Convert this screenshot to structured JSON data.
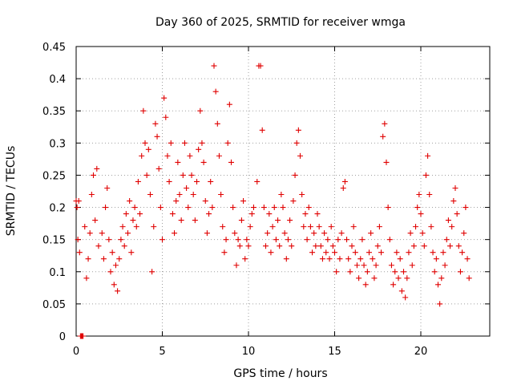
{
  "chart_data": {
    "type": "scatter",
    "title": "Day 360 of 2025, SRMTID for receiver wmga",
    "xlabel": "GPS time / hours",
    "ylabel": "SRMTID / TECUs",
    "xlim": [
      0,
      24.0
    ],
    "ylim": [
      0,
      0.45
    ],
    "xticks": [
      0,
      5,
      10,
      15,
      20
    ],
    "xtick_labels": [
      "0",
      "5",
      "10",
      "15",
      "20"
    ],
    "yticks": [
      0,
      0.05,
      0.1,
      0.15,
      0.2,
      0.25,
      0.3,
      0.35,
      0.4,
      0.45
    ],
    "ytick_labels": [
      "0",
      "0.05",
      "0.1",
      "0.15",
      "0.2",
      "0.25",
      "0.3",
      "0.35",
      "0.4",
      "0.45"
    ],
    "grid": true,
    "marker": "+",
    "color": "#e00000",
    "series": [
      {
        "name": "SRMTID",
        "points": [
          [
            0.0,
            0.21
          ],
          [
            0.05,
            0.2
          ],
          [
            0.1,
            0.15
          ],
          [
            0.15,
            0.21
          ],
          [
            0.2,
            0.13
          ],
          [
            0.25,
            0.0
          ],
          [
            0.3,
            0.0
          ],
          [
            0.35,
            0.0
          ],
          [
            0.4,
            0.0
          ],
          [
            0.5,
            0.17
          ],
          [
            0.6,
            0.09
          ],
          [
            0.7,
            0.12
          ],
          [
            0.8,
            0.16
          ],
          [
            0.9,
            0.22
          ],
          [
            1.0,
            0.25
          ],
          [
            1.1,
            0.18
          ],
          [
            1.2,
            0.26
          ],
          [
            1.3,
            0.14
          ],
          [
            1.5,
            0.16
          ],
          [
            1.6,
            0.12
          ],
          [
            1.7,
            0.2
          ],
          [
            1.8,
            0.23
          ],
          [
            1.9,
            0.15
          ],
          [
            2.0,
            0.1
          ],
          [
            2.1,
            0.13
          ],
          [
            2.2,
            0.08
          ],
          [
            2.3,
            0.11
          ],
          [
            2.4,
            0.07
          ],
          [
            2.5,
            0.12
          ],
          [
            2.6,
            0.15
          ],
          [
            2.7,
            0.17
          ],
          [
            2.8,
            0.14
          ],
          [
            2.9,
            0.19
          ],
          [
            3.0,
            0.16
          ],
          [
            3.1,
            0.21
          ],
          [
            3.2,
            0.13
          ],
          [
            3.3,
            0.18
          ],
          [
            3.4,
            0.2
          ],
          [
            3.5,
            0.17
          ],
          [
            3.6,
            0.24
          ],
          [
            3.7,
            0.19
          ],
          [
            3.8,
            0.28
          ],
          [
            3.9,
            0.35
          ],
          [
            4.0,
            0.3
          ],
          [
            4.1,
            0.25
          ],
          [
            4.2,
            0.29
          ],
          [
            4.3,
            0.22
          ],
          [
            4.4,
            0.1
          ],
          [
            4.5,
            0.17
          ],
          [
            4.6,
            0.33
          ],
          [
            4.7,
            0.31
          ],
          [
            4.8,
            0.26
          ],
          [
            4.9,
            0.2
          ],
          [
            5.0,
            0.15
          ],
          [
            5.1,
            0.37
          ],
          [
            5.2,
            0.34
          ],
          [
            5.3,
            0.28
          ],
          [
            5.4,
            0.24
          ],
          [
            5.5,
            0.3
          ],
          [
            5.6,
            0.19
          ],
          [
            5.7,
            0.16
          ],
          [
            5.8,
            0.21
          ],
          [
            5.9,
            0.27
          ],
          [
            6.0,
            0.22
          ],
          [
            6.1,
            0.18
          ],
          [
            6.2,
            0.25
          ],
          [
            6.3,
            0.3
          ],
          [
            6.4,
            0.23
          ],
          [
            6.5,
            0.2
          ],
          [
            6.6,
            0.28
          ],
          [
            6.7,
            0.25
          ],
          [
            6.8,
            0.22
          ],
          [
            6.9,
            0.18
          ],
          [
            7.0,
            0.24
          ],
          [
            7.1,
            0.29
          ],
          [
            7.2,
            0.35
          ],
          [
            7.3,
            0.3
          ],
          [
            7.4,
            0.27
          ],
          [
            7.5,
            0.21
          ],
          [
            7.6,
            0.16
          ],
          [
            7.7,
            0.19
          ],
          [
            7.8,
            0.24
          ],
          [
            7.9,
            0.2
          ],
          [
            8.0,
            0.42
          ],
          [
            8.1,
            0.38
          ],
          [
            8.2,
            0.33
          ],
          [
            8.3,
            0.28
          ],
          [
            8.4,
            0.22
          ],
          [
            8.5,
            0.17
          ],
          [
            8.6,
            0.13
          ],
          [
            8.7,
            0.15
          ],
          [
            8.8,
            0.3
          ],
          [
            8.9,
            0.36
          ],
          [
            9.0,
            0.27
          ],
          [
            9.1,
            0.2
          ],
          [
            9.2,
            0.16
          ],
          [
            9.3,
            0.11
          ],
          [
            9.4,
            0.15
          ],
          [
            9.5,
            0.14
          ],
          [
            9.6,
            0.18
          ],
          [
            9.7,
            0.21
          ],
          [
            9.8,
            0.12
          ],
          [
            9.9,
            0.15
          ],
          [
            10.0,
            0.14
          ],
          [
            10.1,
            0.17
          ],
          [
            10.2,
            0.19
          ],
          [
            10.3,
            0.2
          ],
          [
            10.5,
            0.24
          ],
          [
            10.6,
            0.42
          ],
          [
            10.7,
            0.42
          ],
          [
            10.8,
            0.32
          ],
          [
            10.9,
            0.2
          ],
          [
            11.0,
            0.14
          ],
          [
            11.1,
            0.16
          ],
          [
            11.2,
            0.19
          ],
          [
            11.3,
            0.13
          ],
          [
            11.4,
            0.17
          ],
          [
            11.5,
            0.2
          ],
          [
            11.6,
            0.15
          ],
          [
            11.7,
            0.18
          ],
          [
            11.8,
            0.14
          ],
          [
            11.9,
            0.22
          ],
          [
            12.0,
            0.2
          ],
          [
            12.1,
            0.16
          ],
          [
            12.2,
            0.12
          ],
          [
            12.3,
            0.15
          ],
          [
            12.4,
            0.18
          ],
          [
            12.5,
            0.14
          ],
          [
            12.6,
            0.21
          ],
          [
            12.7,
            0.25
          ],
          [
            12.8,
            0.3
          ],
          [
            12.9,
            0.32
          ],
          [
            13.0,
            0.28
          ],
          [
            13.1,
            0.22
          ],
          [
            13.2,
            0.17
          ],
          [
            13.3,
            0.19
          ],
          [
            13.4,
            0.15
          ],
          [
            13.5,
            0.2
          ],
          [
            13.6,
            0.17
          ],
          [
            13.7,
            0.13
          ],
          [
            13.8,
            0.16
          ],
          [
            13.9,
            0.14
          ],
          [
            14.0,
            0.19
          ],
          [
            14.1,
            0.17
          ],
          [
            14.2,
            0.14
          ],
          [
            14.3,
            0.12
          ],
          [
            14.4,
            0.16
          ],
          [
            14.5,
            0.13
          ],
          [
            14.6,
            0.15
          ],
          [
            14.7,
            0.12
          ],
          [
            14.8,
            0.17
          ],
          [
            14.9,
            0.14
          ],
          [
            15.0,
            0.13
          ],
          [
            15.1,
            0.1
          ],
          [
            15.2,
            0.15
          ],
          [
            15.3,
            0.12
          ],
          [
            15.4,
            0.16
          ],
          [
            15.5,
            0.23
          ],
          [
            15.6,
            0.24
          ],
          [
            15.7,
            0.15
          ],
          [
            15.8,
            0.12
          ],
          [
            15.9,
            0.1
          ],
          [
            16.0,
            0.14
          ],
          [
            16.1,
            0.17
          ],
          [
            16.2,
            0.13
          ],
          [
            16.3,
            0.11
          ],
          [
            16.4,
            0.09
          ],
          [
            16.5,
            0.12
          ],
          [
            16.6,
            0.15
          ],
          [
            16.7,
            0.11
          ],
          [
            16.8,
            0.08
          ],
          [
            16.9,
            0.1
          ],
          [
            17.0,
            0.13
          ],
          [
            17.1,
            0.16
          ],
          [
            17.2,
            0.12
          ],
          [
            17.3,
            0.09
          ],
          [
            17.4,
            0.11
          ],
          [
            17.5,
            0.14
          ],
          [
            17.6,
            0.17
          ],
          [
            17.7,
            0.13
          ],
          [
            17.8,
            0.31
          ],
          [
            17.9,
            0.33
          ],
          [
            18.0,
            0.27
          ],
          [
            18.1,
            0.2
          ],
          [
            18.2,
            0.15
          ],
          [
            18.3,
            0.11
          ],
          [
            18.4,
            0.08
          ],
          [
            18.5,
            0.1
          ],
          [
            18.6,
            0.13
          ],
          [
            18.7,
            0.09
          ],
          [
            18.8,
            0.12
          ],
          [
            18.9,
            0.07
          ],
          [
            19.0,
            0.1
          ],
          [
            19.1,
            0.06
          ],
          [
            19.2,
            0.09
          ],
          [
            19.3,
            0.13
          ],
          [
            19.4,
            0.16
          ],
          [
            19.5,
            0.11
          ],
          [
            19.6,
            0.14
          ],
          [
            19.7,
            0.17
          ],
          [
            19.8,
            0.2
          ],
          [
            19.9,
            0.22
          ],
          [
            20.0,
            0.19
          ],
          [
            20.1,
            0.16
          ],
          [
            20.2,
            0.14
          ],
          [
            20.3,
            0.25
          ],
          [
            20.4,
            0.28
          ],
          [
            20.5,
            0.22
          ],
          [
            20.6,
            0.17
          ],
          [
            20.7,
            0.13
          ],
          [
            20.8,
            0.1
          ],
          [
            20.9,
            0.12
          ],
          [
            21.0,
            0.08
          ],
          [
            21.1,
            0.05
          ],
          [
            21.2,
            0.09
          ],
          [
            21.3,
            0.13
          ],
          [
            21.4,
            0.11
          ],
          [
            21.5,
            0.15
          ],
          [
            21.6,
            0.18
          ],
          [
            21.7,
            0.14
          ],
          [
            21.8,
            0.17
          ],
          [
            21.9,
            0.21
          ],
          [
            22.0,
            0.23
          ],
          [
            22.1,
            0.19
          ],
          [
            22.2,
            0.14
          ],
          [
            22.3,
            0.1
          ],
          [
            22.4,
            0.13
          ],
          [
            22.5,
            0.16
          ],
          [
            22.6,
            0.2
          ],
          [
            22.7,
            0.12
          ],
          [
            22.8,
            0.09
          ]
        ]
      }
    ]
  }
}
